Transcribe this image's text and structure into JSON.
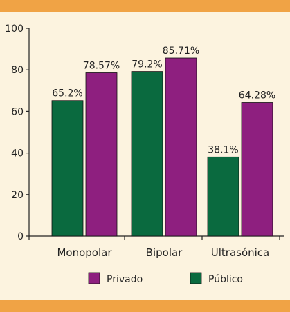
{
  "colors": {
    "background": "#FCF3DF",
    "band": "#F0A345",
    "axis": "#222222"
  },
  "chart_data": {
    "type": "bar",
    "categories": [
      "Monopolar",
      "Bipolar",
      "Ultrasónica"
    ],
    "series": [
      {
        "name": "Público",
        "color": "#0A6A3F",
        "values": [
          65.2,
          79.2,
          38.1
        ],
        "labels": [
          "65.2%",
          "79.2%",
          "38.1%"
        ]
      },
      {
        "name": "Privado",
        "color": "#8E1F7F",
        "values": [
          78.57,
          85.71,
          64.28
        ],
        "labels": [
          "78.57%",
          "85.71%",
          "64.28%"
        ]
      }
    ],
    "ylim": [
      0,
      100
    ],
    "yticks": [
      0,
      20,
      40,
      60,
      80,
      100
    ],
    "ytick_labels": [
      "0",
      "20",
      "40",
      "60",
      "80",
      "100"
    ],
    "legend_order": [
      "Privado",
      "Público"
    ],
    "legend_position": "bottom-center",
    "grid": false
  }
}
